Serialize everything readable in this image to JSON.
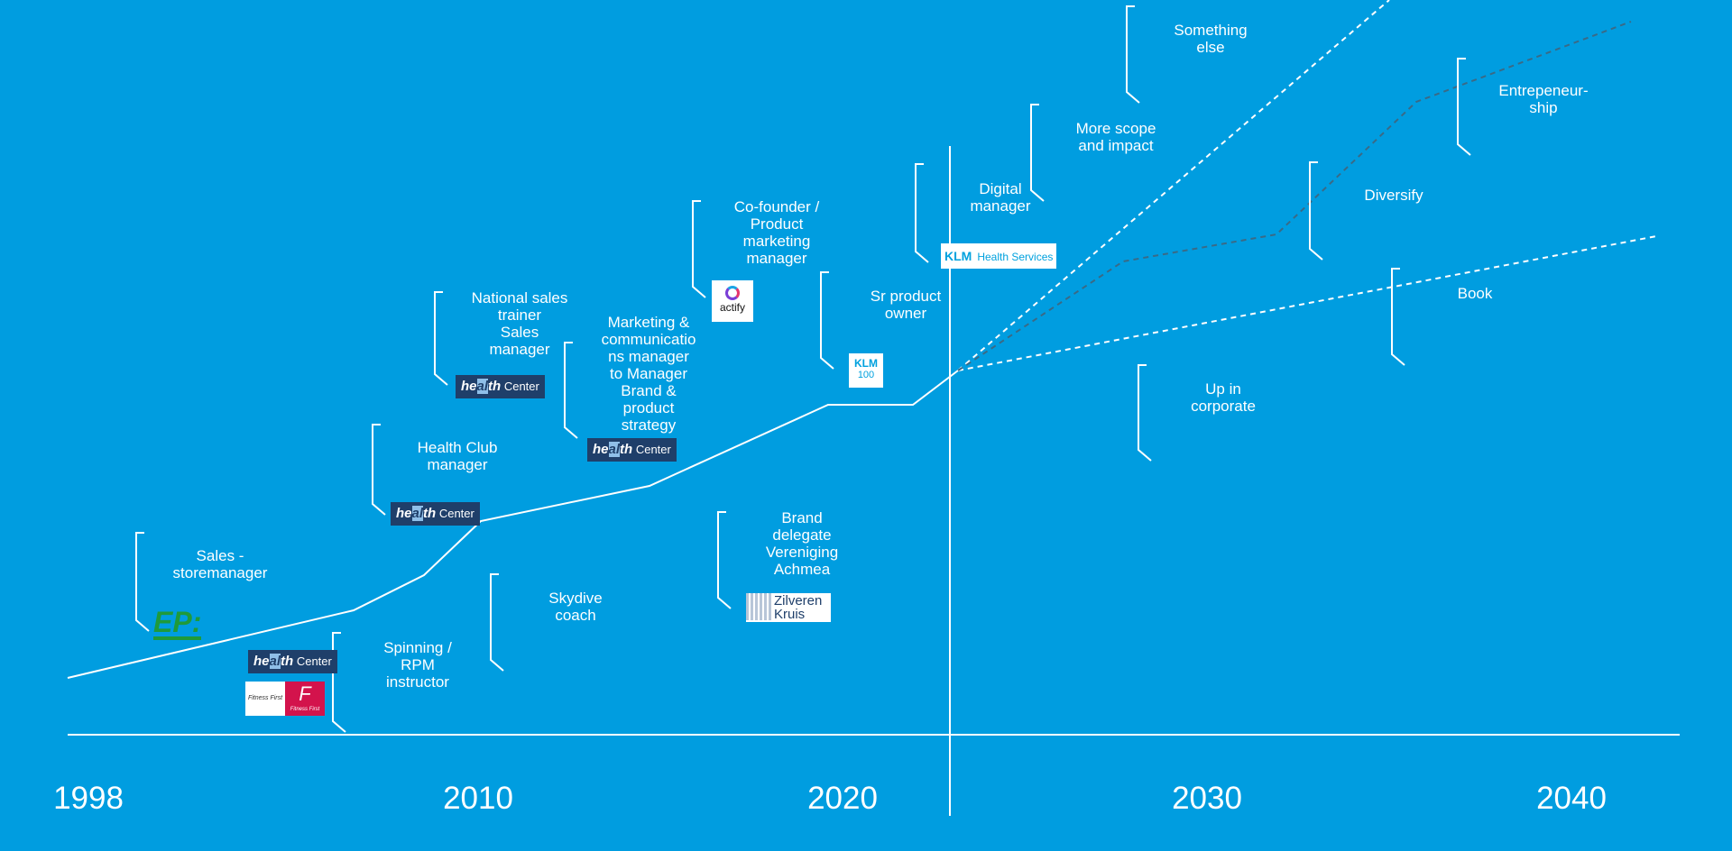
{
  "colors": {
    "background": "#009de0",
    "line": "#ffffff",
    "dashed_dark": "#3a6a86"
  },
  "years": [
    "1998",
    "2010",
    "2020",
    "2030",
    "2040"
  ],
  "roles": [
    {
      "id": "sales",
      "text": "Sales -\nstoremanager"
    },
    {
      "id": "spinning",
      "text": "Spinning /\nRPM\ninstructor"
    },
    {
      "id": "health-club",
      "text": "Health Club\nmanager"
    },
    {
      "id": "national-sales",
      "text": "National sales\ntrainer\nSales\nmanager"
    },
    {
      "id": "skydive",
      "text": "Skydive\ncoach"
    },
    {
      "id": "marketing",
      "text": "Marketing &\ncommunicatio\nns manager\nto Manager\nBrand &\nproduct\nstrategy"
    },
    {
      "id": "brand-delegate",
      "text": "Brand\ndelegate\nVereniging\nAchmea"
    },
    {
      "id": "cofounder",
      "text": "Co-founder /\nProduct\nmarketing\nmanager"
    },
    {
      "id": "sr-product",
      "text": "Sr product\nowner"
    },
    {
      "id": "digital",
      "text": "Digital\nmanager"
    },
    {
      "id": "more-scope",
      "text": "More scope\nand impact"
    },
    {
      "id": "something-else",
      "text": "Something\nelse"
    },
    {
      "id": "up-corporate",
      "text": "Up in\ncorporate"
    },
    {
      "id": "diversify",
      "text": "Diversify"
    },
    {
      "id": "book",
      "text": "Book"
    },
    {
      "id": "entrepreneurship",
      "text": "Entrepeneur-\nship"
    }
  ],
  "logos": {
    "health_center": {
      "word_a": "he",
      "word_hi": "al",
      "word_b": "th",
      "suffix": "Center"
    },
    "actify": "actify",
    "klm_health": {
      "brand": "KLM",
      "text": "Health Services"
    },
    "klm100": {
      "brand": "KLM",
      "text": "100"
    },
    "zilveren": {
      "line1": "Zilveren",
      "line2": "Kruis"
    },
    "ep": "EP:",
    "fitness_first": {
      "left": "Fitness First",
      "right": "F",
      "right_sub": "Fitness First"
    }
  }
}
